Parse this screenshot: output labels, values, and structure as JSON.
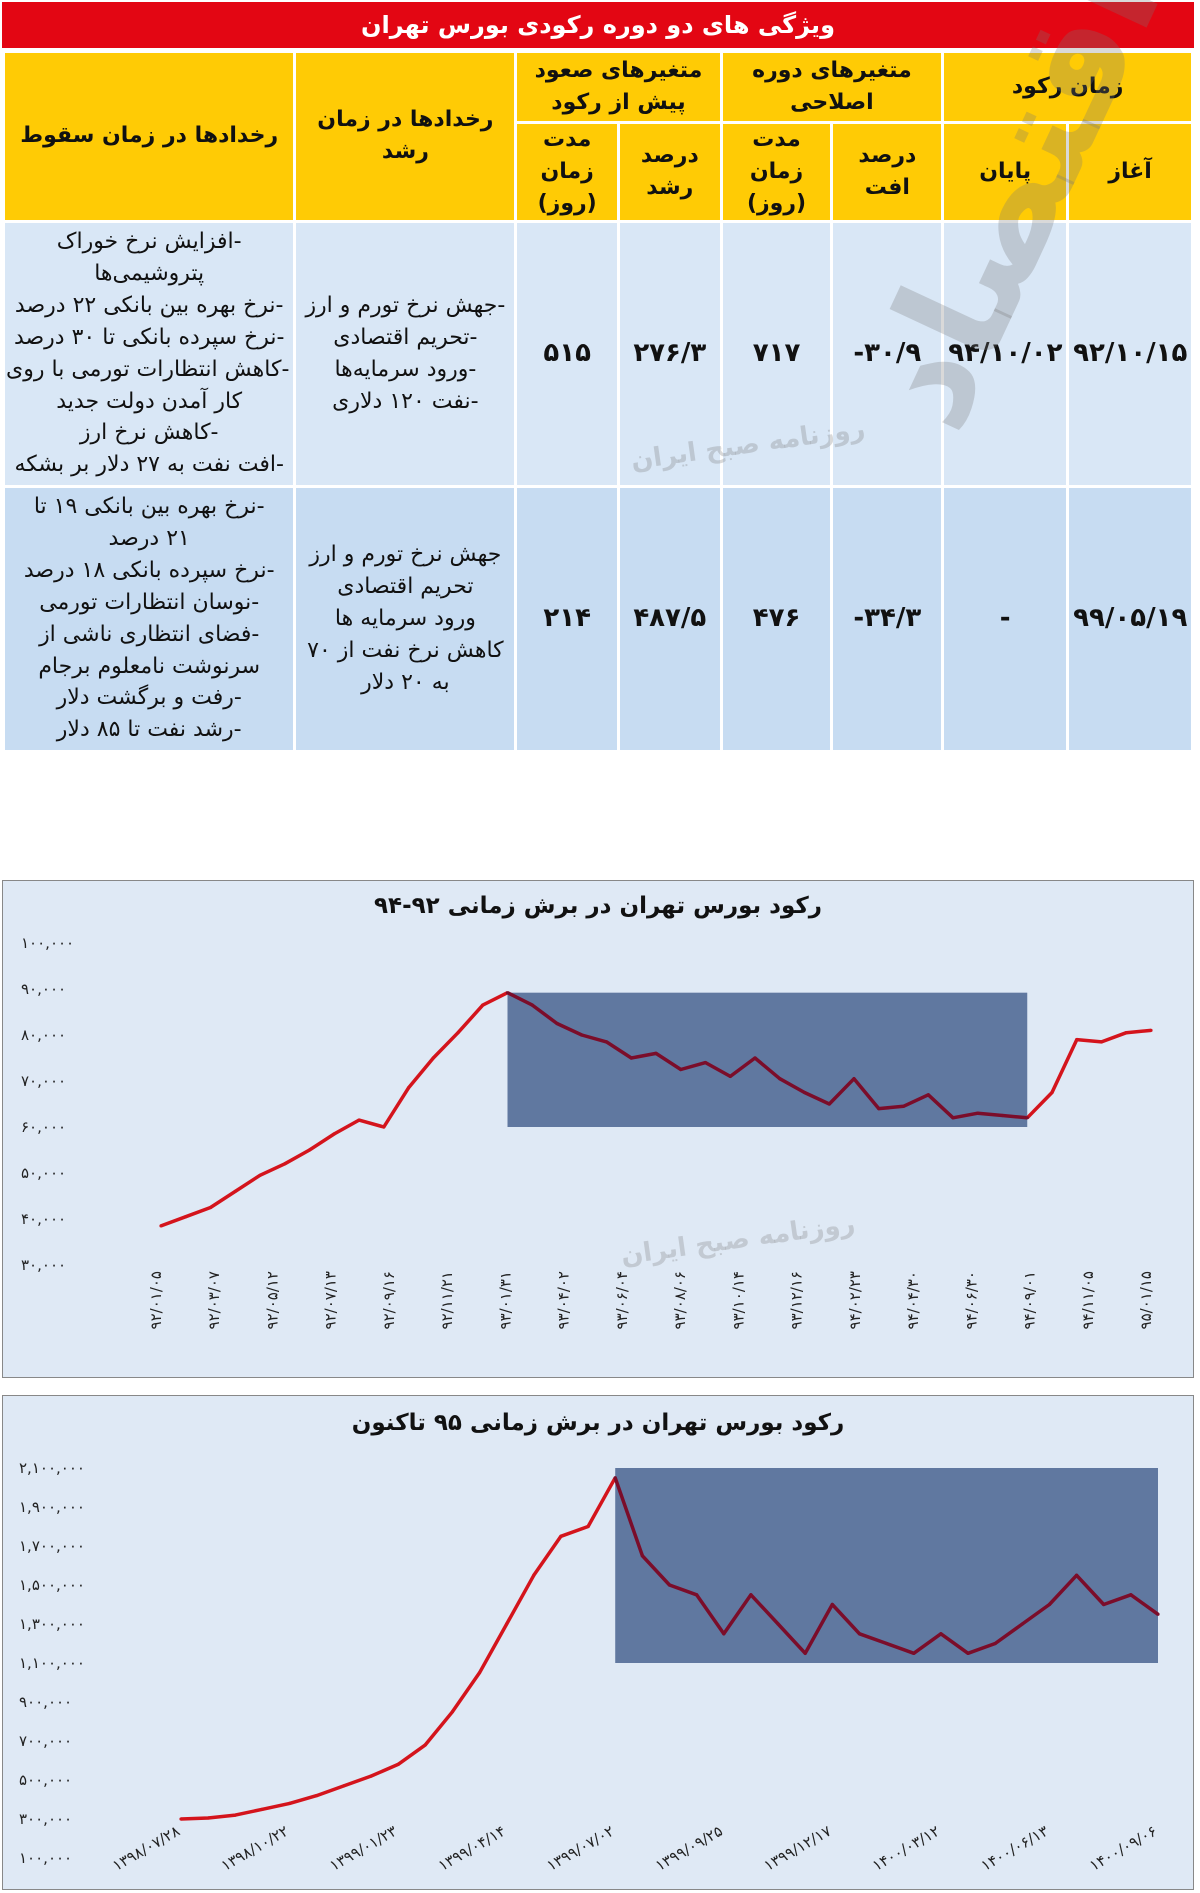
{
  "header": {
    "title": "ویژگی های دو دوره رکودی بورس تهران"
  },
  "table": {
    "h_recession_time": "زمان رکود",
    "h_start": "آغاز",
    "h_end": "پایان",
    "h_correction": "متغیرهای دوره اصلاحی",
    "h_drop_pct": "درصد افت",
    "h_duration": "مدت زمان (روز)",
    "h_pre_rise": "متغیرهای صعود پیش از رکود",
    "h_growth_pct": "درصد رشد",
    "h_duration2": "مدت زمان (روز)",
    "h_events_growth": "رخدادها در زمان رشد",
    "h_events_fall": "رخدادها در زمان سقوط",
    "rows": [
      {
        "start": "۹۲/۱۰/۱۵",
        "end": "۹۴/۱۰/۰۲",
        "drop_pct": "-۳۰/۹",
        "drop_days": "۷۱۷",
        "growth_pct": "۲۷۶/۳",
        "growth_days": "۵۱۵",
        "growth_events": [
          "-جهش نرخ تورم و ارز",
          "-تحریم اقتصادی",
          "-ورود سرمایه‌ها",
          "-نفت ۱۲۰ دلاری"
        ],
        "fall_events": [
          "-افزایش نرخ خوراک",
          "پتروشیمی‌ها",
          "-نرخ بهره بین بانکی ۲۲ درصد",
          "-نرخ سپرده بانکی تا ۳۰ درصد",
          "-کاهش انتظارات تورمی با روی",
          "کار آمدن دولت جدید",
          "-کاهش نرخ ارز",
          "-افت نفت به ۲۷ دلار بر بشکه"
        ]
      },
      {
        "start": "۹۹/۰۵/۱۹",
        "end": "-",
        "drop_pct": "-۳۴/۳",
        "drop_days": "۴۷۶",
        "growth_pct": "۴۸۷/۵",
        "growth_days": "۲۱۴",
        "growth_events": [
          "جهش نرخ تورم و ارز",
          "تحریم اقتصادی",
          "ورود سرمایه ها",
          "کاهش نرخ نفت از ۷۰",
          "به ۲۰ دلار"
        ],
        "fall_events": [
          "-نرخ بهره بین بانکی ۱۹ تا",
          "۲۱ درصد",
          "-نرخ سپرده بانکی ۱۸ درصد",
          "-نوسان انتظارات تورمی",
          "-فضای انتظاری ناشی از",
          "سرنوشت نامعلوم برجام",
          "-رفت و برگشت دلار",
          "-رشد نفت تا ۸۵ دلار"
        ]
      }
    ]
  },
  "watermark": {
    "main": "دنیای اقتصاد",
    "small": "روزنامه صبح ایران"
  },
  "colors": {
    "title_bar": "#e30613",
    "header": "#ffcb05",
    "row1": "#d9e7f6",
    "row2": "#c7dcf2",
    "line": "#d4141c",
    "line_dark": "#7b0d2a",
    "shade": "#4a6491",
    "chart_bg": "#dfe9f5"
  },
  "chart_data": [
    {
      "type": "line",
      "title": "رکود بورس تهران در برش زمانی ۹۲-۹۴",
      "y_tick_labels": [
        "۱۰۰,۰۰۰",
        "۹۰,۰۰۰",
        "۸۰,۰۰۰",
        "۷۰,۰۰۰",
        "۶۰,۰۰۰",
        "۵۰,۰۰۰",
        "۴۰,۰۰۰",
        "۳۰,۰۰۰"
      ],
      "y_ticks": [
        100000,
        90000,
        80000,
        70000,
        60000,
        50000,
        40000,
        30000
      ],
      "ylim": [
        30000,
        100000
      ],
      "x_tick_labels": [
        "۹۲/۰۱/۰۵",
        "۹۲/۰۳/۰۷",
        "۹۲/۰۵/۱۲",
        "۹۲/۰۷/۱۳",
        "۹۲/۰۹/۱۶",
        "۹۲/۱۱/۲۱",
        "۹۳/۰۱/۳۱",
        "۹۳/۰۴/۰۲",
        "۹۳/۰۶/۰۴",
        "۹۳/۰۸/۰۶",
        "۹۳/۱۰/۱۴",
        "۹۳/۱۲/۱۶",
        "۹۴/۰۲/۲۳",
        "۹۴/۰۴/۳۰",
        "۹۴/۰۶/۳۰",
        "۹۴/۰۹/۰۱",
        "۹۴/۱۱/۰۵",
        "۹۵/۰۱/۱۵"
      ],
      "series": [
        {
          "values": [
            38500,
            40500,
            42500,
            46000,
            49500,
            52000,
            55000,
            58500,
            61500,
            60000,
            68500,
            75000,
            80500,
            86500,
            89200,
            86500,
            82500,
            80000,
            78500,
            75000,
            76000,
            72500,
            74000,
            71000,
            75000,
            70500,
            67500,
            65000,
            70500,
            64000,
            64500,
            67000,
            62000,
            63000,
            62500,
            62000,
            67500,
            79000,
            78500,
            80500,
            81000
          ]
        }
      ],
      "shaded_region": {
        "from_value_index": 14,
        "to_value_index": 35,
        "y_range": [
          60000,
          89200
        ]
      }
    },
    {
      "type": "line",
      "title": "رکود بورس تهران در برش زمانی ۹۵ تاکنون",
      "y_tick_labels": [
        "۲,۱۰۰,۰۰۰",
        "۱,۹۰۰,۰۰۰",
        "۱,۷۰۰,۰۰۰",
        "۱,۵۰۰,۰۰۰",
        "۱,۳۰۰,۰۰۰",
        "۱,۱۰۰,۰۰۰",
        "۹۰۰,۰۰۰",
        "۷۰۰,۰۰۰",
        "۵۰۰,۰۰۰",
        "۳۰۰,۰۰۰",
        "۱۰۰,۰۰۰"
      ],
      "y_ticks": [
        2100000,
        1900000,
        1700000,
        1500000,
        1300000,
        1100000,
        900000,
        700000,
        500000,
        300000,
        100000
      ],
      "ylim": [
        100000,
        2100000
      ],
      "x_tick_labels": [
        "۱۳۹۸/۰۷/۲۸",
        "۱۳۹۸/۱۰/۲۲",
        "۱۳۹۹/۰۱/۲۳",
        "۱۳۹۹/۰۴/۱۴",
        "۱۳۹۹/۰۷/۰۲",
        "۱۳۹۹/۰۹/۲۵",
        "۱۳۹۹/۱۲/۱۷",
        "۱۴۰۰/۰۳/۱۲",
        "۱۴۰۰/۰۶/۱۳",
        "۱۴۰۰/۰۹/۰۶"
      ],
      "series": [
        {
          "values": [
            300000,
            305000,
            320000,
            350000,
            380000,
            420000,
            470000,
            520000,
            580000,
            680000,
            850000,
            1050000,
            1300000,
            1550000,
            1750000,
            1800000,
            2050000,
            1650000,
            1500000,
            1450000,
            1250000,
            1450000,
            1300000,
            1150000,
            1400000,
            1250000,
            1200000,
            1150000,
            1250000,
            1150000,
            1200000,
            1300000,
            1400000,
            1550000,
            1400000,
            1450000,
            1350000
          ]
        }
      ],
      "shaded_region": {
        "from_value_index": 16,
        "to_value_index": 36,
        "y_range": [
          1100000,
          2100000
        ]
      }
    }
  ]
}
